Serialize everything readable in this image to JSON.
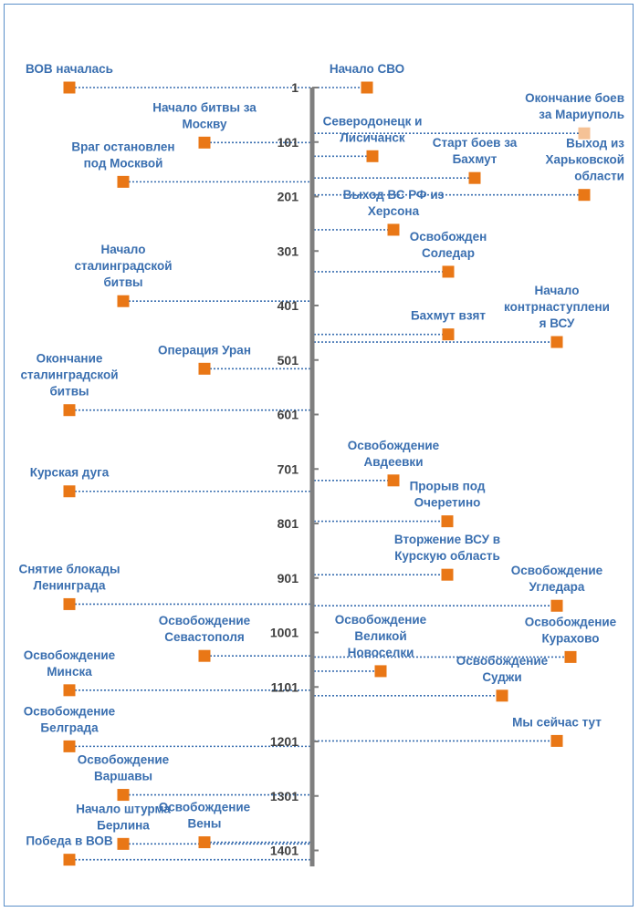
{
  "chart_data": {
    "type": "timeline",
    "axis": {
      "unit": "day",
      "min": 1,
      "max": 1450,
      "ticks": [
        1,
        101,
        201,
        301,
        401,
        501,
        601,
        701,
        801,
        901,
        1001,
        1101,
        1201,
        1301,
        1401
      ]
    },
    "colors": {
      "axis": "#7f7f7f",
      "marker": "#e97716",
      "label": "#3a6fb0",
      "leader": "#3a6fb0",
      "tick": "#404040",
      "border": "#5b8fc9"
    },
    "left_series": {
      "name": "ВОВ",
      "events": [
        {
          "day": 1,
          "label": [
            "ВОВ началась"
          ],
          "marker": "far",
          "label_pos": "above"
        },
        {
          "day": 174,
          "label": [
            "Враг остановлен",
            "под Москвой"
          ],
          "marker": "mid",
          "label_pos": "above"
        },
        {
          "day": 102,
          "label": [
            "Начало битвы за",
            "Москву"
          ],
          "marker": "near",
          "label_pos": "above"
        },
        {
          "day": 393,
          "label": [
            "Начало",
            "сталинградской",
            "битвы"
          ],
          "marker": "mid",
          "label_pos": "above"
        },
        {
          "day": 517,
          "label": [
            "Операция Уран"
          ],
          "marker": "near",
          "label_pos": "above"
        },
        {
          "day": 593,
          "label": [
            "Окончание",
            "сталинградской",
            "битвы"
          ],
          "marker": "far",
          "label_pos": "above"
        },
        {
          "day": 742,
          "label": [
            "Курская дуга"
          ],
          "marker": "far",
          "label_pos": "above"
        },
        {
          "day": 949,
          "label": [
            "Снятие блокады",
            "Ленинграда"
          ],
          "marker": "far",
          "label_pos": "above"
        },
        {
          "day": 1044,
          "label": [
            "Освобождение",
            "Севастополя"
          ],
          "marker": "near",
          "label_pos": "above"
        },
        {
          "day": 1107,
          "label": [
            "Освобождение",
            "Минска"
          ],
          "marker": "far",
          "label_pos": "above"
        },
        {
          "day": 1210,
          "label": [
            "Освобождение",
            "Белграда"
          ],
          "marker": "far",
          "label_pos": "above"
        },
        {
          "day": 1299,
          "label": [
            "Освобождение",
            "Варшавы"
          ],
          "marker": "mid",
          "label_pos": "above"
        },
        {
          "day": 1389,
          "label": [
            "Начало штурма",
            "Берлина"
          ],
          "marker": "mid",
          "label_pos": "above"
        },
        {
          "day": 1386,
          "label": [
            "Освобождение",
            "Вены"
          ],
          "marker": "near",
          "label_pos": "above"
        },
        {
          "day": 1418,
          "label": [
            "Победа в ВОВ"
          ],
          "marker": "far",
          "label_pos": "above"
        }
      ]
    },
    "right_series": {
      "name": "СВО",
      "events": [
        {
          "day": 1,
          "label": [
            "Начало СВО"
          ],
          "marker": 60,
          "label_anchor": "middle",
          "label_pos": "above"
        },
        {
          "day": 85,
          "label": [
            "Окончание боев",
            "за Мариуполь"
          ],
          "marker": 298,
          "label_anchor": "end",
          "label_pos": "above",
          "faded": true
        },
        {
          "day": 127,
          "label": [
            "Северодонецк и",
            "Лисичанск"
          ],
          "marker": 66,
          "label_anchor": "middle",
          "label_pos": "above"
        },
        {
          "day": 167,
          "label": [
            "Старт боев за",
            "Бахмут"
          ],
          "marker": 178,
          "label_anchor": "middle",
          "label_pos": "above"
        },
        {
          "day": 198,
          "label": [
            "Выход из",
            "Харьковской",
            "области"
          ],
          "marker": 298,
          "label_anchor": "end",
          "label_pos": "above"
        },
        {
          "day": 262,
          "label": [
            "Выход ВС РФ из",
            "Херсона"
          ],
          "marker": 89,
          "label_anchor": "middle",
          "label_pos": "above"
        },
        {
          "day": 339,
          "label": [
            "Освобожден",
            "Соледар"
          ],
          "marker": 149,
          "label_anchor": "middle",
          "label_pos": "above"
        },
        {
          "day": 454,
          "label": [
            "Бахмут взят"
          ],
          "marker": 149,
          "label_anchor": "middle",
          "label_pos": "above"
        },
        {
          "day": 468,
          "label": [
            "Начало",
            "контрнаступлени",
            "я ВСУ"
          ],
          "marker": 268,
          "label_anchor": "middle",
          "label_pos": "above"
        },
        {
          "day": 722,
          "label": [
            "Освобождение",
            "Авдеевки"
          ],
          "marker": 89,
          "label_anchor": "middle",
          "label_pos": "above"
        },
        {
          "day": 797,
          "label": [
            "Прорыв под",
            "Очеретино"
          ],
          "marker": 148,
          "label_anchor": "middle",
          "label_pos": "above"
        },
        {
          "day": 895,
          "label": [
            "Вторжение ВСУ в",
            "Курскую область"
          ],
          "marker": 148,
          "label_anchor": "middle",
          "label_pos": "above"
        },
        {
          "day": 952,
          "label": [
            "Освобождение",
            "Угледара"
          ],
          "marker": 268,
          "label_anchor": "middle",
          "label_pos": "above"
        },
        {
          "day": 1072,
          "label": [
            "Освобождение",
            "Великой",
            "Новоселки"
          ],
          "marker": 75,
          "label_anchor": "middle",
          "label_pos": "above"
        },
        {
          "day": 1046,
          "label": [
            "Освобождение",
            "Курахово"
          ],
          "marker": 283,
          "label_anchor": "middle",
          "label_pos": "above"
        },
        {
          "day": 1117,
          "label": [
            "Освобождение",
            "Суджи"
          ],
          "marker": 208,
          "label_anchor": "middle",
          "label_pos": "above"
        },
        {
          "day": 1200,
          "label": [
            "Мы сейчас тут"
          ],
          "marker": 268,
          "label_anchor": "middle",
          "label_pos": "above"
        }
      ]
    }
  }
}
